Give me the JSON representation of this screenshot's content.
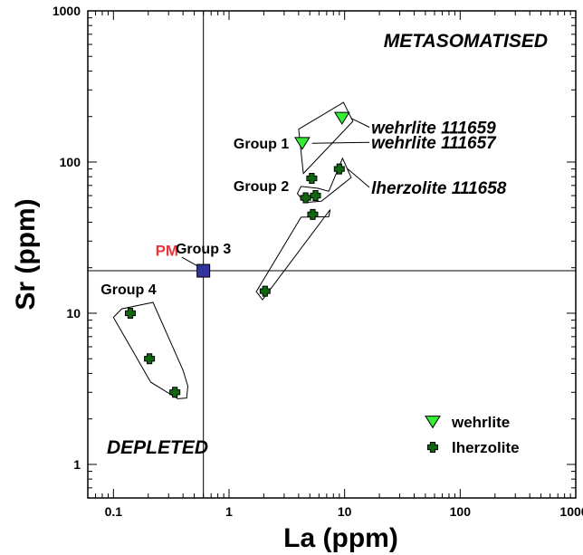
{
  "chart_data": {
    "type": "scatter",
    "xscale": "log",
    "yscale": "log",
    "xlim": [
      0.06,
      1000
    ],
    "ylim": [
      0.6,
      1000
    ],
    "xlabel": "La (ppm)",
    "ylabel": "Sr (ppm)",
    "x_ticks": [
      {
        "value": 0.1,
        "label": "0.1"
      },
      {
        "value": 1,
        "label": "1"
      },
      {
        "value": 10,
        "label": "10"
      },
      {
        "value": 100,
        "label": "100"
      },
      {
        "value": 1000,
        "label": "1000"
      }
    ],
    "y_ticks": [
      {
        "value": 1,
        "label": "1"
      },
      {
        "value": 10,
        "label": "10"
      },
      {
        "value": 100,
        "label": "100"
      },
      {
        "value": 1000,
        "label": "1000"
      }
    ],
    "series": [
      {
        "name": "wehrlite",
        "marker": "triangle-down",
        "color": "#33ee33",
        "points": [
          {
            "x": 9.5,
            "y": 195
          },
          {
            "x": 4.3,
            "y": 133
          }
        ]
      },
      {
        "name": "lherzolite",
        "marker": "plus",
        "color": "#116611",
        "points": [
          {
            "x": 9.0,
            "y": 90
          },
          {
            "x": 5.2,
            "y": 78
          },
          {
            "x": 4.6,
            "y": 58
          },
          {
            "x": 5.6,
            "y": 60
          },
          {
            "x": 5.3,
            "y": 45
          },
          {
            "x": 2.05,
            "y": 14
          },
          {
            "x": 0.14,
            "y": 10
          },
          {
            "x": 0.205,
            "y": 5
          },
          {
            "x": 0.34,
            "y": 3
          }
        ]
      }
    ],
    "reference_point": {
      "label": "PM",
      "x": 0.6,
      "y": 19.1,
      "color": "#333399",
      "label_color": "#e8383d"
    },
    "reference_lines": {
      "x": 0.6,
      "y": 19.1
    },
    "regions": [
      {
        "label": "METASOMATISED",
        "position": "top-right"
      },
      {
        "label": "DEPLETED",
        "position": "bottom-left"
      }
    ],
    "groups": [
      {
        "label": "Group 1",
        "lx": 1.9,
        "ly": 134,
        "poly": [
          [
            4.0,
            165
          ],
          [
            9.8,
            248
          ],
          [
            11.8,
            186
          ],
          [
            5.2,
            96
          ],
          [
            4.4,
            84
          ]
        ]
      },
      {
        "label": "Group 2",
        "lx": 1.9,
        "ly": 70,
        "poly": [
          [
            3.9,
            62
          ],
          [
            4.5,
            54
          ],
          [
            6.3,
            55
          ],
          [
            11.4,
            79
          ],
          [
            9.6,
            106
          ],
          [
            7.3,
            64
          ],
          [
            5.9,
            67
          ],
          [
            4.2,
            69
          ]
        ]
      },
      {
        "label": "Group 3",
        "lx": 0.6,
        "ly": 27,
        "poly": [
          [
            1.72,
            13.9
          ],
          [
            1.95,
            12.3
          ],
          [
            7.5,
            48.5
          ],
          [
            7.3,
            43.5
          ],
          [
            4.2,
            43.2
          ]
        ]
      },
      {
        "label": "Group 4",
        "lx": 0.135,
        "ly": 14.5,
        "poly": [
          [
            0.1,
            9.4
          ],
          [
            0.118,
            10.7
          ],
          [
            0.22,
            11.8
          ],
          [
            0.4,
            4.2
          ],
          [
            0.44,
            3.3
          ],
          [
            0.43,
            2.75
          ],
          [
            0.36,
            2.72
          ],
          [
            0.21,
            3.5
          ]
        ]
      }
    ],
    "annotations": [
      {
        "text": "wehrlite 111659",
        "lx": 17,
        "ly": 170,
        "tx": 10.0,
        "ty": 195
      },
      {
        "text": "wehrlite 111657",
        "lx": 17,
        "ly": 135,
        "tx": 4.6,
        "ty": 133
      },
      {
        "text": "lherzolite 111658",
        "lx": 17,
        "ly": 68,
        "tx": 9.4,
        "ty": 90
      }
    ],
    "legend": {
      "position": "bottom-right",
      "entries": [
        {
          "label": "wehrlite",
          "marker": "triangle-down"
        },
        {
          "label": "lherzolite",
          "marker": "plus"
        }
      ]
    },
    "grid": false
  }
}
